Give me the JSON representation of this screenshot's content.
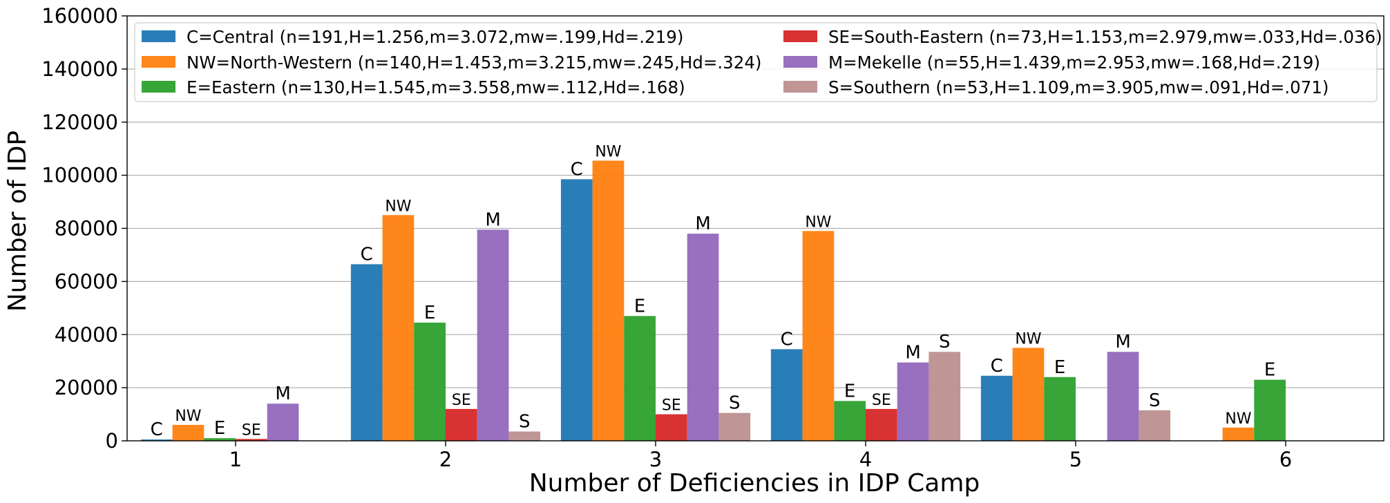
{
  "chart_data": {
    "type": "bar",
    "xlabel": "Number of Deficiencies in IDP Camp",
    "ylabel": "Number of IDP",
    "ylim": [
      0,
      160000
    ],
    "yticks": [
      0,
      20000,
      40000,
      60000,
      80000,
      100000,
      120000,
      140000,
      160000
    ],
    "categories": [
      "1",
      "2",
      "3",
      "4",
      "5",
      "6"
    ],
    "grid": "horizontal",
    "legend_position": "top",
    "series": [
      {
        "key": "C",
        "name": "C=Central (n=191,H=1.256,m=3.072,mw=.199,Hd=.219)",
        "color": "#1f77b4",
        "values": [
          500,
          66500,
          98500,
          34500,
          24500,
          0
        ],
        "labels": [
          "C",
          "C",
          "C",
          "C",
          "C",
          ""
        ]
      },
      {
        "key": "NW",
        "name": "NW=North-Western (n=140,H=1.453,m=3.215,mw=.245,Hd=.324)",
        "color": "#ff7f0e",
        "values": [
          6000,
          85000,
          105500,
          79000,
          35000,
          5000
        ],
        "labels": [
          "NW",
          "NW",
          "NW",
          "NW",
          "NW",
          "NW"
        ]
      },
      {
        "key": "E",
        "name": "E=Eastern (n=130,H=1.545,m=3.558,mw=.112,Hd=.168)",
        "color": "#2ca02c",
        "values": [
          1000,
          44500,
          47000,
          15000,
          24000,
          23000
        ],
        "labels": [
          "E",
          "E",
          "E",
          "E",
          "E",
          "E"
        ]
      },
      {
        "key": "SE",
        "name": "SE=South-Eastern (n=73,H=1.153,m=2.979,mw=.033,Hd=.036)",
        "color": "#d62728",
        "values": [
          700,
          12000,
          10000,
          12000,
          0,
          0
        ],
        "labels": [
          "SE",
          "SE",
          "SE",
          "SE",
          "",
          ""
        ]
      },
      {
        "key": "M",
        "name": "M=Mekelle (n=55,H=1.439,m=2.953,mw=.168,Hd=.219)",
        "color": "#9467bd",
        "values": [
          14000,
          79500,
          78000,
          29500,
          33500,
          0
        ],
        "labels": [
          "M",
          "M",
          "M",
          "M",
          "M",
          ""
        ]
      },
      {
        "key": "S",
        "name": "S=Southern (n=53,H=1.109,m=3.905,mw=.091,Hd=.071)",
        "color": "#bc8f8f",
        "values": [
          0,
          3500,
          10500,
          33500,
          11500,
          0
        ],
        "labels": [
          "",
          "S",
          "S",
          "S",
          "S",
          ""
        ]
      }
    ]
  }
}
